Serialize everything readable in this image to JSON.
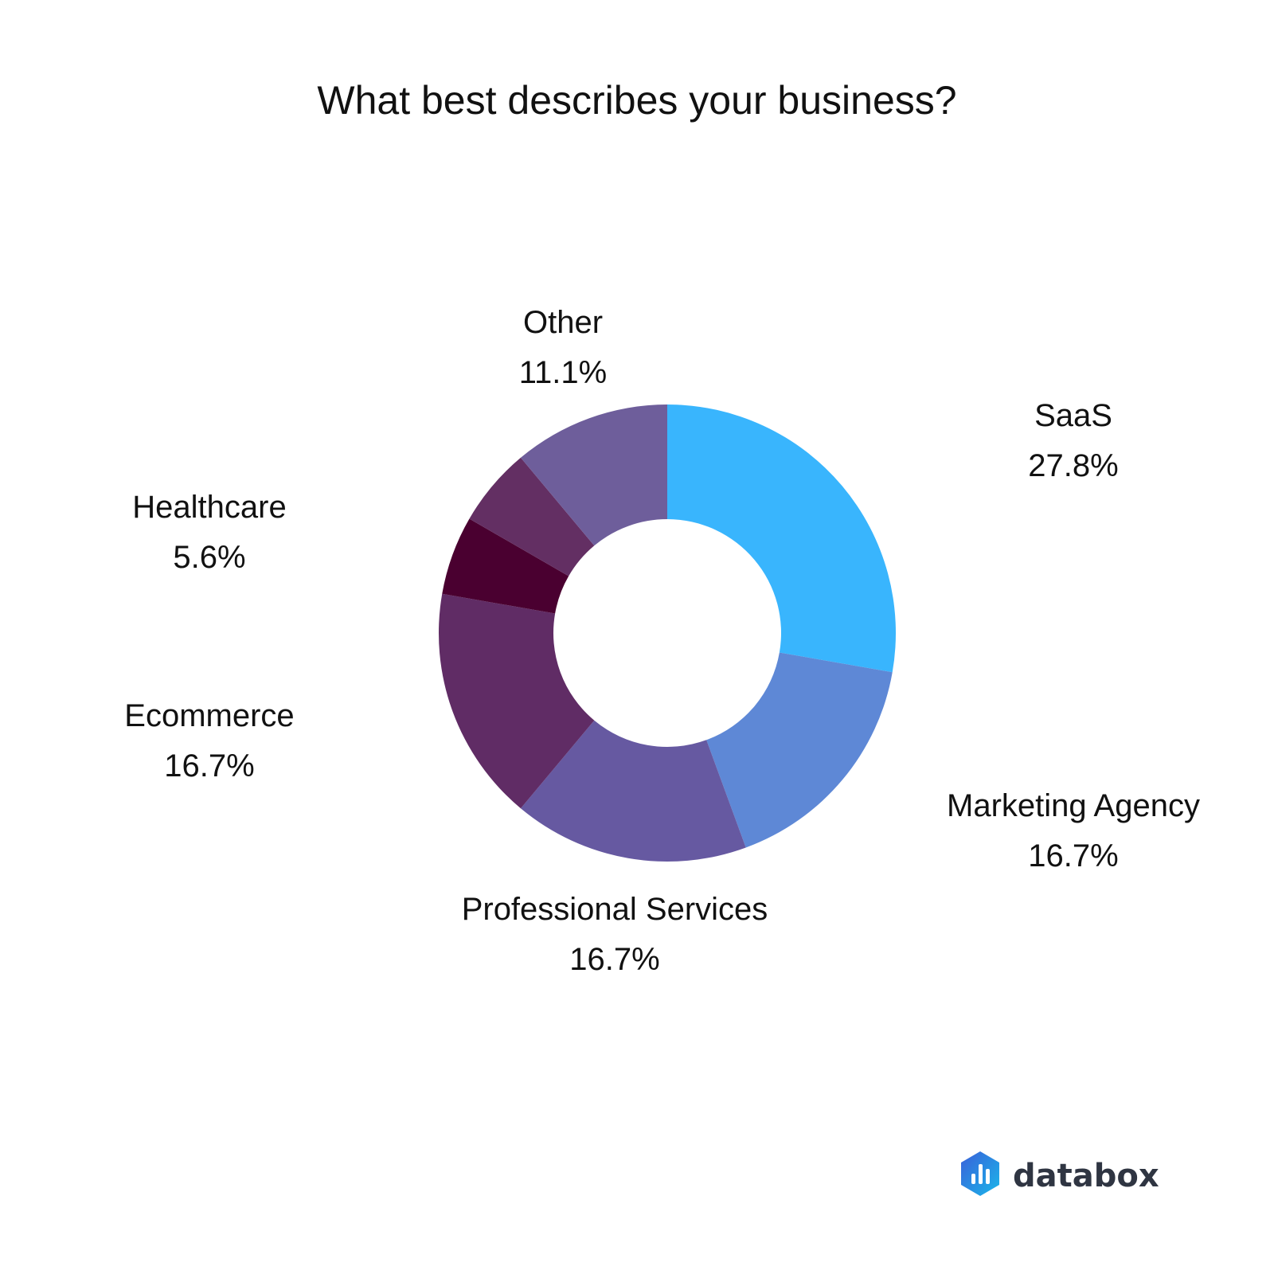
{
  "chart_data": {
    "type": "pie",
    "title": "What best describes your business?",
    "donut": true,
    "slices": [
      {
        "label": "SaaS",
        "value": 27.8,
        "value_label": "27.8%",
        "color": "#39B5FD"
      },
      {
        "label": "Marketing Agency",
        "value": 16.7,
        "value_label": "16.7%",
        "color": "#5E88D6"
      },
      {
        "label": "Professional Services",
        "value": 16.7,
        "value_label": "16.7%",
        "color": "#6659A1"
      },
      {
        "label": "Ecommerce",
        "value": 16.7,
        "value_label": "16.7%",
        "color": "#602C65"
      },
      {
        "label": "Healthcare",
        "value": 5.6,
        "value_label": "5.6%",
        "color": "#4A0030"
      },
      {
        "label": "",
        "value": 5.6,
        "value_label": "",
        "color": "#632F63"
      },
      {
        "label": "Other",
        "value": 11.1,
        "value_label": "11.1%",
        "color": "#6E5E9B"
      }
    ]
  },
  "brand": {
    "name": "databox",
    "logo_icon": "databox-logo-icon",
    "logo_colors": [
      "#3A5FD9",
      "#1AB7EA"
    ]
  }
}
